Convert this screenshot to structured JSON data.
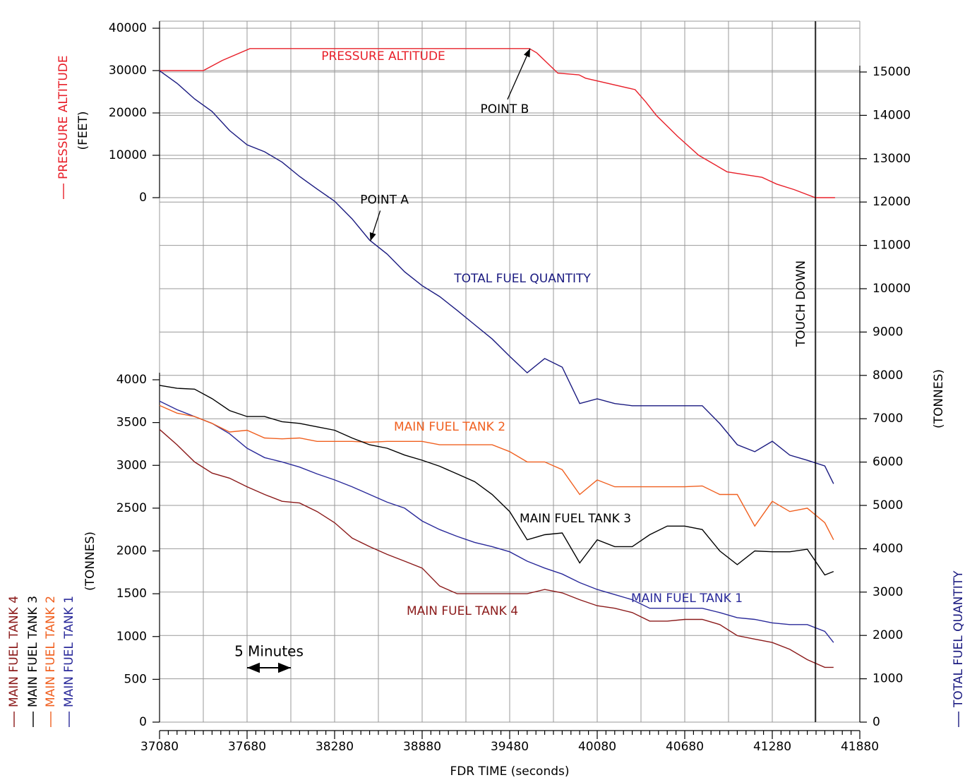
{
  "chart_data": [
    {
      "type": "line",
      "ylabel": "(FEET)",
      "ylim": [
        0,
        40000
      ],
      "yticks": [
        0,
        10000,
        20000,
        30000,
        40000
      ],
      "x": [
        37080,
        37380,
        37510,
        37700,
        39615,
        39665,
        39810,
        39955,
        40000,
        40340,
        40413,
        40486,
        40630,
        40776,
        40970,
        41210,
        41310,
        41430,
        41575,
        41710
      ],
      "series": [
        {
          "name": "PRESSURE ALTITUDE",
          "color": "#e8202a",
          "values": [
            30000,
            30000,
            32400,
            35200,
            35200,
            34200,
            29400,
            29000,
            28200,
            25500,
            22600,
            19400,
            14500,
            10000,
            6100,
            4800,
            3200,
            1900,
            0,
            0
          ]
        }
      ],
      "annotations": [
        {
          "text": "POINT B",
          "x": 39620,
          "y": 35200
        }
      ]
    },
    {
      "type": "line",
      "xlabel": "FDR TIME (seconds)",
      "ylabel": "(TONNES)",
      "y2label": "(TONNES)",
      "xlim": [
        37080,
        41880
      ],
      "xticks": [
        37080,
        37680,
        38280,
        38880,
        39480,
        40080,
        40680,
        41280,
        41880
      ],
      "ylim": [
        0,
        4000
      ],
      "yticks": [
        0,
        500,
        1000,
        1500,
        2000,
        2500,
        3000,
        3500,
        4000
      ],
      "y2lim": [
        0,
        15000
      ],
      "y2ticks": [
        0,
        1000,
        2000,
        3000,
        4000,
        5000,
        6000,
        7000,
        8000,
        9000,
        10000,
        11000,
        12000,
        13000,
        14000,
        15000
      ],
      "grid": true,
      "x": [
        37080,
        37200,
        37320,
        37440,
        37560,
        37680,
        37800,
        37920,
        38040,
        38160,
        38280,
        38400,
        38520,
        38640,
        38760,
        38880,
        39000,
        39120,
        39240,
        39360,
        39480,
        39600,
        39720,
        39840,
        39960,
        40080,
        40200,
        40320,
        40440,
        40560,
        40680,
        40800,
        40920,
        41040,
        41160,
        41280,
        41400,
        41520,
        41640,
        41700
      ],
      "series": [
        {
          "name": "MAIN FUEL TANK 1",
          "color": "#2a2a9a",
          "values": [
            3750,
            3650,
            3570,
            3490,
            3370,
            3200,
            3090,
            3040,
            2980,
            2900,
            2830,
            2750,
            2660,
            2570,
            2500,
            2350,
            2250,
            2170,
            2100,
            2050,
            1990,
            1880,
            1800,
            1730,
            1630,
            1550,
            1490,
            1430,
            1330,
            1330,
            1330,
            1330,
            1280,
            1220,
            1200,
            1160,
            1140,
            1140,
            1060,
            930
          ]
        },
        {
          "name": "MAIN FUEL TANK 2",
          "color": "#f06020",
          "values": [
            3700,
            3610,
            3570,
            3490,
            3390,
            3410,
            3320,
            3310,
            3320,
            3280,
            3280,
            3280,
            3270,
            3280,
            3280,
            3280,
            3240,
            3240,
            3240,
            3240,
            3160,
            3040,
            3040,
            2950,
            2660,
            2830,
            2750,
            2750,
            2750,
            2750,
            2750,
            2760,
            2660,
            2660,
            2290,
            2580,
            2460,
            2500,
            2330,
            2130
          ]
        },
        {
          "name": "MAIN FUEL TANK 3",
          "color": "#000000",
          "values": [
            3935,
            3900,
            3890,
            3780,
            3640,
            3570,
            3570,
            3510,
            3490,
            3450,
            3410,
            3320,
            3240,
            3200,
            3120,
            3060,
            2990,
            2900,
            2810,
            2660,
            2460,
            2130,
            2190,
            2210,
            1860,
            2130,
            2050,
            2050,
            2190,
            2290,
            2290,
            2250,
            2000,
            1840,
            2000,
            1990,
            1990,
            2020,
            1720,
            1760
          ]
        },
        {
          "name": "MAIN FUEL TANK 4",
          "color": "#8b1a1a",
          "values": [
            3420,
            3240,
            3040,
            2910,
            2850,
            2750,
            2660,
            2580,
            2560,
            2460,
            2330,
            2150,
            2050,
            1960,
            1880,
            1800,
            1590,
            1500,
            1500,
            1500,
            1500,
            1500,
            1550,
            1510,
            1430,
            1360,
            1330,
            1280,
            1180,
            1180,
            1200,
            1200,
            1140,
            1010,
            970,
            930,
            850,
            730,
            640,
            640
          ]
        },
        {
          "name": "TOTAL FUEL QUANTITY",
          "color": "#1a1a80",
          "axis": "y2",
          "values": [
            15030,
            14740,
            14380,
            14090,
            13650,
            13320,
            13160,
            12920,
            12590,
            12300,
            12020,
            11610,
            11120,
            10800,
            10390,
            10070,
            9820,
            9500,
            9170,
            8840,
            8440,
            8060,
            8390,
            8190,
            7350,
            7460,
            7350,
            7300,
            7300,
            7300,
            7300,
            7300,
            6890,
            6400,
            6240,
            6480,
            6160,
            6040,
            5910,
            5500
          ]
        }
      ],
      "annotations": [
        {
          "text": "POINT A",
          "x": 38525,
          "y": 11100,
          "axis": "y2"
        }
      ],
      "vlines": [
        {
          "text": "TOUCH DOWN",
          "x": 41575
        }
      ],
      "scale_bar": {
        "text": "5 Minutes",
        "x": [
          37680,
          37980
        ]
      }
    }
  ]
}
